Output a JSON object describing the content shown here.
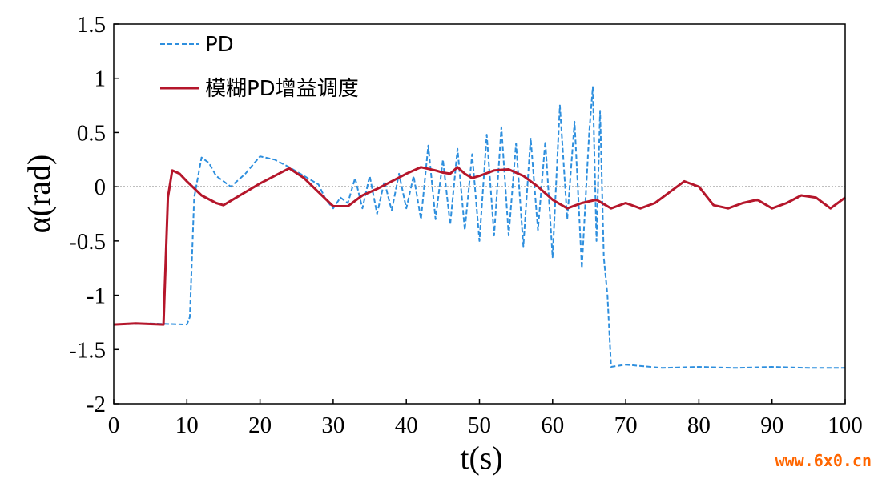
{
  "chart_data": {
    "type": "line",
    "xlabel": "t(s)",
    "ylabel": "α(rad)",
    "xlim": [
      0,
      100
    ],
    "ylim": [
      -2,
      1.5
    ],
    "xticks": [
      "0",
      "10",
      "20",
      "30",
      "40",
      "50",
      "60",
      "70",
      "80",
      "90",
      "100"
    ],
    "yticks": [
      "1.5",
      "1",
      "0.5",
      "0",
      "-0.5",
      "-1",
      "-1.5",
      "-2"
    ],
    "zero_line": true,
    "grid": false,
    "legend_position": "top-left",
    "series": [
      {
        "name": "PD",
        "color": "#2e8fde",
        "style": "dashed",
        "x": [
          0,
          5,
          10,
          10.4,
          11,
          12,
          13,
          14,
          16,
          18,
          20,
          22,
          24,
          26,
          28,
          29,
          30,
          31,
          32,
          33,
          34,
          35,
          36,
          37,
          38,
          39,
          40,
          41,
          42,
          43,
          44,
          45,
          46,
          47,
          48,
          49,
          50,
          51,
          52,
          53,
          54,
          55,
          56,
          57,
          58,
          59,
          60,
          61,
          62,
          63,
          64,
          65,
          65.5,
          66,
          66.5,
          67,
          67.5,
          68,
          70,
          75,
          80,
          85,
          90,
          95,
          100
        ],
        "y": [
          -1.27,
          -1.26,
          -1.27,
          -1.2,
          -0.1,
          0.27,
          0.22,
          0.1,
          0.0,
          0.12,
          0.28,
          0.25,
          0.18,
          0.1,
          0.02,
          -0.12,
          -0.2,
          -0.1,
          -0.15,
          0.08,
          -0.2,
          0.1,
          -0.25,
          0.05,
          -0.22,
          0.12,
          -0.2,
          0.1,
          -0.3,
          0.38,
          -0.3,
          0.25,
          -0.35,
          0.35,
          -0.4,
          0.3,
          -0.5,
          0.48,
          -0.45,
          0.55,
          -0.45,
          0.4,
          -0.55,
          0.45,
          -0.4,
          0.42,
          -0.65,
          0.75,
          -0.3,
          0.6,
          -0.75,
          0.5,
          0.92,
          -0.5,
          0.7,
          -0.65,
          -1.0,
          -1.66,
          -1.64,
          -1.67,
          -1.66,
          -1.67,
          -1.66,
          -1.67,
          -1.67
        ]
      },
      {
        "name": "模糊PD增益调度",
        "color": "#b5162b",
        "style": "solid",
        "x": [
          0,
          3,
          6.8,
          7.4,
          8,
          9,
          10,
          12,
          14,
          15,
          18,
          20,
          22,
          24,
          26,
          28,
          30,
          32,
          34,
          36,
          38,
          40,
          42,
          44,
          45,
          46,
          47,
          48,
          49,
          50,
          52,
          54,
          56,
          58,
          60,
          62,
          64,
          66,
          68,
          70,
          72,
          74,
          76,
          78,
          80,
          82,
          84,
          86,
          88,
          90,
          92,
          94,
          96,
          98,
          100
        ],
        "y": [
          -1.27,
          -1.26,
          -1.27,
          -0.1,
          0.15,
          0.12,
          0.05,
          -0.08,
          -0.15,
          -0.17,
          -0.05,
          0.03,
          0.1,
          0.17,
          0.08,
          -0.05,
          -0.18,
          -0.18,
          -0.08,
          -0.02,
          0.05,
          0.12,
          0.18,
          0.15,
          0.13,
          0.12,
          0.18,
          0.12,
          0.08,
          0.1,
          0.15,
          0.16,
          0.1,
          0.0,
          -0.12,
          -0.2,
          -0.15,
          -0.12,
          -0.2,
          -0.15,
          -0.2,
          -0.15,
          -0.05,
          0.05,
          0.0,
          -0.17,
          -0.2,
          -0.15,
          -0.12,
          -0.2,
          -0.15,
          -0.08,
          -0.1,
          -0.2,
          -0.1
        ]
      }
    ]
  },
  "watermark": "www.6x0.cn"
}
